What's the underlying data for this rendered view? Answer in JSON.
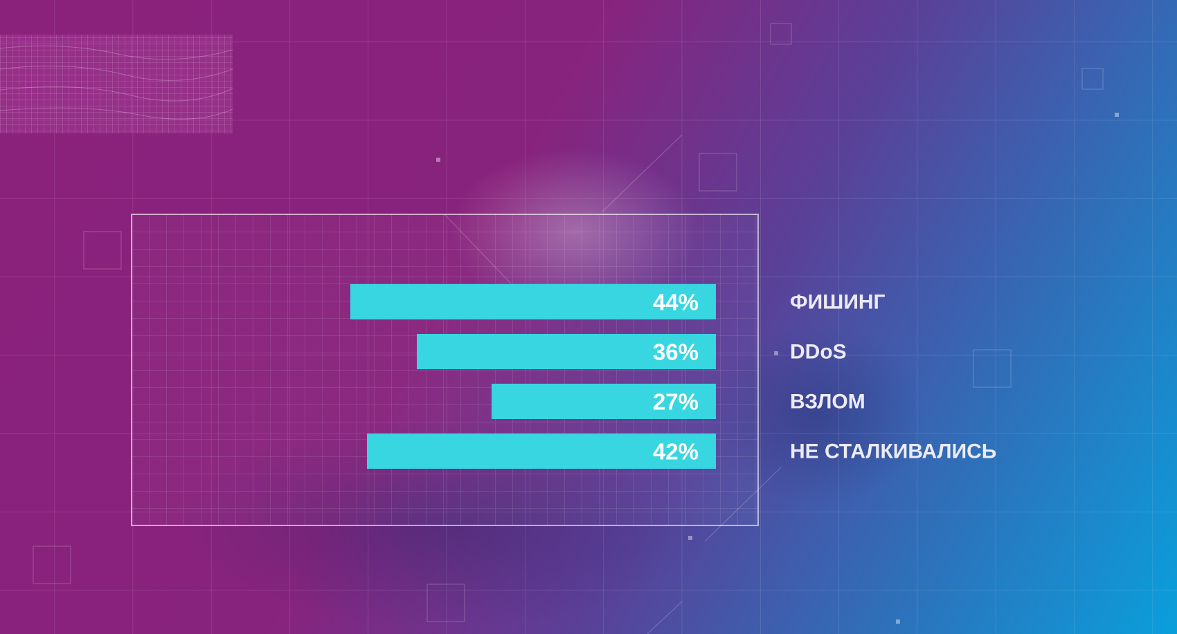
{
  "colors": {
    "background_top_left": "#8a217b",
    "background_bottom_right": "#0a9fdb",
    "bar": "#38d6e1",
    "label_text": "#ecebf5",
    "value_text": "#ffffff"
  },
  "chart_data": {
    "type": "bar",
    "orientation": "horizontal",
    "bar_direction": "right-to-left",
    "categories": [
      "ФИШИНГ",
      "DDoS",
      "ВЗЛОМ",
      "НЕ СТАЛКИВАЛИСЬ"
    ],
    "values": [
      44,
      36,
      27,
      42
    ],
    "value_labels": [
      "44%",
      "36%",
      "27%",
      "42%"
    ],
    "unit": "%",
    "xlim": [
      0,
      50
    ],
    "grid": true,
    "legend": "none",
    "category_label_placement": "right",
    "value_label_placement": "inside-end"
  }
}
